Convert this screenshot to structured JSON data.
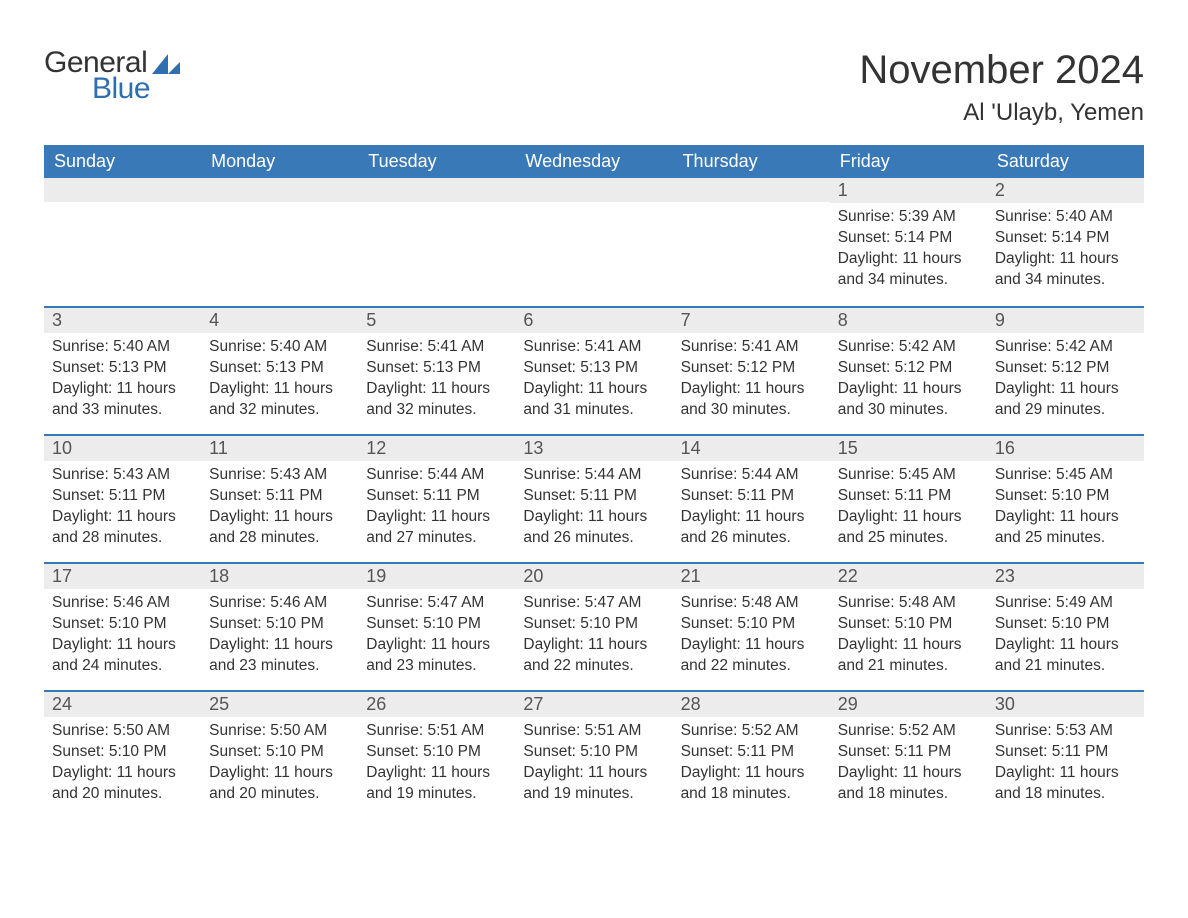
{
  "logo": {
    "general": "General",
    "blue": "Blue",
    "shape_color": "#2f6fb0"
  },
  "title": "November 2024",
  "location": "Al 'Ulayb, Yemen",
  "colors": {
    "header_bg": "#3a79b7",
    "header_text": "#ffffff",
    "strip_bg": "#ececec",
    "week_border": "#3a79b7",
    "text": "#333333"
  },
  "day_headers": [
    "Sunday",
    "Monday",
    "Tuesday",
    "Wednesday",
    "Thursday",
    "Friday",
    "Saturday"
  ],
  "weeks": [
    [
      null,
      null,
      null,
      null,
      null,
      {
        "n": "1",
        "sunrise": "Sunrise: 5:39 AM",
        "sunset": "Sunset: 5:14 PM",
        "daylight": "Daylight: 11 hours and 34 minutes."
      },
      {
        "n": "2",
        "sunrise": "Sunrise: 5:40 AM",
        "sunset": "Sunset: 5:14 PM",
        "daylight": "Daylight: 11 hours and 34 minutes."
      }
    ],
    [
      {
        "n": "3",
        "sunrise": "Sunrise: 5:40 AM",
        "sunset": "Sunset: 5:13 PM",
        "daylight": "Daylight: 11 hours and 33 minutes."
      },
      {
        "n": "4",
        "sunrise": "Sunrise: 5:40 AM",
        "sunset": "Sunset: 5:13 PM",
        "daylight": "Daylight: 11 hours and 32 minutes."
      },
      {
        "n": "5",
        "sunrise": "Sunrise: 5:41 AM",
        "sunset": "Sunset: 5:13 PM",
        "daylight": "Daylight: 11 hours and 32 minutes."
      },
      {
        "n": "6",
        "sunrise": "Sunrise: 5:41 AM",
        "sunset": "Sunset: 5:13 PM",
        "daylight": "Daylight: 11 hours and 31 minutes."
      },
      {
        "n": "7",
        "sunrise": "Sunrise: 5:41 AM",
        "sunset": "Sunset: 5:12 PM",
        "daylight": "Daylight: 11 hours and 30 minutes."
      },
      {
        "n": "8",
        "sunrise": "Sunrise: 5:42 AM",
        "sunset": "Sunset: 5:12 PM",
        "daylight": "Daylight: 11 hours and 30 minutes."
      },
      {
        "n": "9",
        "sunrise": "Sunrise: 5:42 AM",
        "sunset": "Sunset: 5:12 PM",
        "daylight": "Daylight: 11 hours and 29 minutes."
      }
    ],
    [
      {
        "n": "10",
        "sunrise": "Sunrise: 5:43 AM",
        "sunset": "Sunset: 5:11 PM",
        "daylight": "Daylight: 11 hours and 28 minutes."
      },
      {
        "n": "11",
        "sunrise": "Sunrise: 5:43 AM",
        "sunset": "Sunset: 5:11 PM",
        "daylight": "Daylight: 11 hours and 28 minutes."
      },
      {
        "n": "12",
        "sunrise": "Sunrise: 5:44 AM",
        "sunset": "Sunset: 5:11 PM",
        "daylight": "Daylight: 11 hours and 27 minutes."
      },
      {
        "n": "13",
        "sunrise": "Sunrise: 5:44 AM",
        "sunset": "Sunset: 5:11 PM",
        "daylight": "Daylight: 11 hours and 26 minutes."
      },
      {
        "n": "14",
        "sunrise": "Sunrise: 5:44 AM",
        "sunset": "Sunset: 5:11 PM",
        "daylight": "Daylight: 11 hours and 26 minutes."
      },
      {
        "n": "15",
        "sunrise": "Sunrise: 5:45 AM",
        "sunset": "Sunset: 5:11 PM",
        "daylight": "Daylight: 11 hours and 25 minutes."
      },
      {
        "n": "16",
        "sunrise": "Sunrise: 5:45 AM",
        "sunset": "Sunset: 5:10 PM",
        "daylight": "Daylight: 11 hours and 25 minutes."
      }
    ],
    [
      {
        "n": "17",
        "sunrise": "Sunrise: 5:46 AM",
        "sunset": "Sunset: 5:10 PM",
        "daylight": "Daylight: 11 hours and 24 minutes."
      },
      {
        "n": "18",
        "sunrise": "Sunrise: 5:46 AM",
        "sunset": "Sunset: 5:10 PM",
        "daylight": "Daylight: 11 hours and 23 minutes."
      },
      {
        "n": "19",
        "sunrise": "Sunrise: 5:47 AM",
        "sunset": "Sunset: 5:10 PM",
        "daylight": "Daylight: 11 hours and 23 minutes."
      },
      {
        "n": "20",
        "sunrise": "Sunrise: 5:47 AM",
        "sunset": "Sunset: 5:10 PM",
        "daylight": "Daylight: 11 hours and 22 minutes."
      },
      {
        "n": "21",
        "sunrise": "Sunrise: 5:48 AM",
        "sunset": "Sunset: 5:10 PM",
        "daylight": "Daylight: 11 hours and 22 minutes."
      },
      {
        "n": "22",
        "sunrise": "Sunrise: 5:48 AM",
        "sunset": "Sunset: 5:10 PM",
        "daylight": "Daylight: 11 hours and 21 minutes."
      },
      {
        "n": "23",
        "sunrise": "Sunrise: 5:49 AM",
        "sunset": "Sunset: 5:10 PM",
        "daylight": "Daylight: 11 hours and 21 minutes."
      }
    ],
    [
      {
        "n": "24",
        "sunrise": "Sunrise: 5:50 AM",
        "sunset": "Sunset: 5:10 PM",
        "daylight": "Daylight: 11 hours and 20 minutes."
      },
      {
        "n": "25",
        "sunrise": "Sunrise: 5:50 AM",
        "sunset": "Sunset: 5:10 PM",
        "daylight": "Daylight: 11 hours and 20 minutes."
      },
      {
        "n": "26",
        "sunrise": "Sunrise: 5:51 AM",
        "sunset": "Sunset: 5:10 PM",
        "daylight": "Daylight: 11 hours and 19 minutes."
      },
      {
        "n": "27",
        "sunrise": "Sunrise: 5:51 AM",
        "sunset": "Sunset: 5:10 PM",
        "daylight": "Daylight: 11 hours and 19 minutes."
      },
      {
        "n": "28",
        "sunrise": "Sunrise: 5:52 AM",
        "sunset": "Sunset: 5:11 PM",
        "daylight": "Daylight: 11 hours and 18 minutes."
      },
      {
        "n": "29",
        "sunrise": "Sunrise: 5:52 AM",
        "sunset": "Sunset: 5:11 PM",
        "daylight": "Daylight: 11 hours and 18 minutes."
      },
      {
        "n": "30",
        "sunrise": "Sunrise: 5:53 AM",
        "sunset": "Sunset: 5:11 PM",
        "daylight": "Daylight: 11 hours and 18 minutes."
      }
    ]
  ]
}
